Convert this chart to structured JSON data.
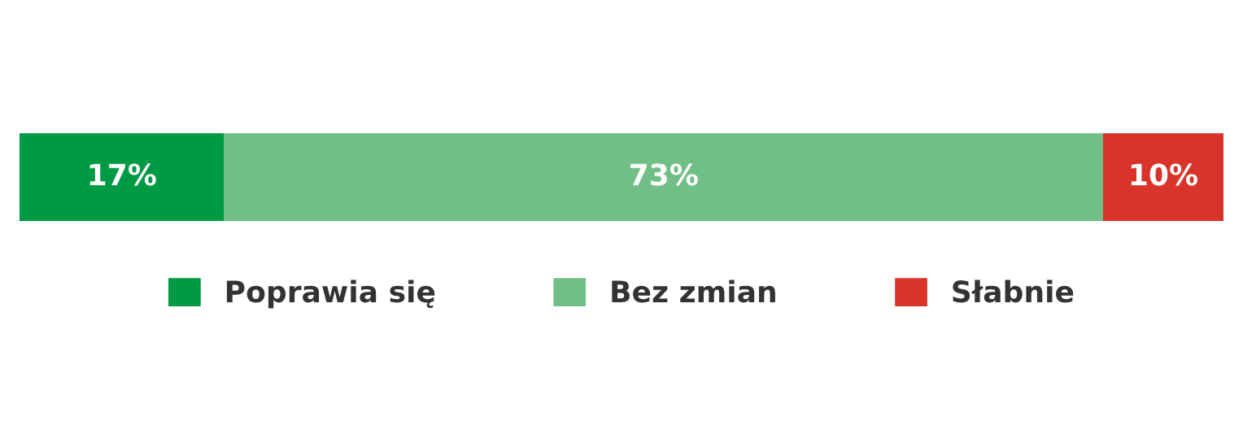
{
  "chart_data": {
    "type": "bar",
    "orientation": "horizontal",
    "stacked": true,
    "categories": [
      null
    ],
    "legend": "bottom",
    "series": [
      {
        "name": "Poprawia się",
        "color": "#009a44",
        "values": [
          17
        ],
        "value_labels": [
          "17%"
        ]
      },
      {
        "name": "Bez zmian",
        "color": "#71bf86",
        "values": [
          73
        ],
        "value_labels": [
          "73%"
        ]
      },
      {
        "name": "Słabnie",
        "color": "#d9342b",
        "values": [
          10
        ],
        "value_labels": [
          "10%"
        ]
      }
    ]
  }
}
